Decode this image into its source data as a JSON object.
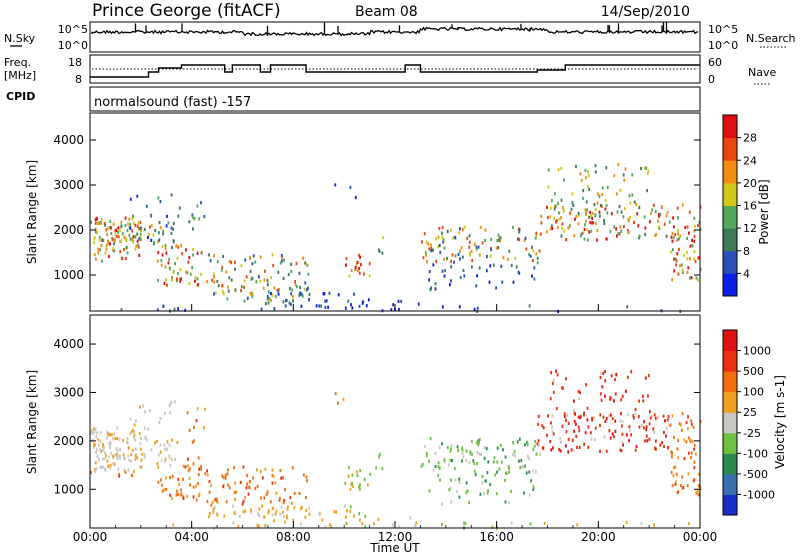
{
  "header": {
    "station": "Prince George (fitACF)",
    "beam": "Beam 08",
    "date": "14/Sep/2010"
  },
  "nsky_panel": {
    "left_label": "N.Sky",
    "right_label": "N.Search",
    "ticks_left": [
      "10^5",
      "10^0"
    ],
    "ticks_right": [
      "10^5",
      "10^0"
    ]
  },
  "freq_panel": {
    "left_label_line1": "Freq.",
    "left_label_line2": "[MHz]",
    "right_label": "Nave",
    "ticks_left": [
      "18",
      "8"
    ],
    "ticks_right": [
      "60",
      "0"
    ]
  },
  "cpid": {
    "label": "CPID",
    "value": "normalsound (fast) -157"
  },
  "chart_data": [
    {
      "type": "heatmap",
      "name": "power",
      "ylabel": "Slant Range [km]",
      "ylim": [
        200,
        4600
      ],
      "yticks": [
        "1000",
        "2000",
        "3000",
        "4000"
      ],
      "colorbar_label": "Power [dB]",
      "colorbar_ticks": [
        "4",
        "8",
        "12",
        "16",
        "20",
        "24",
        "28"
      ],
      "colorbar_range": [
        0,
        32
      ],
      "colors": [
        "#0a1ee6",
        "#2a50b8",
        "#3c7a5a",
        "#52a85a",
        "#d2c818",
        "#f08c10",
        "#e84810",
        "#e01010"
      ]
    },
    {
      "type": "heatmap",
      "name": "velocity",
      "ylabel": "Slant Range [km]",
      "ylim": [
        200,
        4600
      ],
      "yticks": [
        "1000",
        "2000",
        "3000",
        "4000"
      ],
      "colorbar_label": "Velocity [m s-1]",
      "colorbar_ticks": [
        "1000",
        "500",
        "100",
        "25",
        "-25",
        "-100",
        "-500",
        "-1000"
      ],
      "colors": [
        "#1a2ec8",
        "#3a70b0",
        "#2a8a50",
        "#70c040",
        "#c8c8c0",
        "#f0a020",
        "#f07010",
        "#e83010",
        "#e01010"
      ]
    }
  ],
  "time_axis": {
    "label": "Time UT",
    "ticks": [
      "00:00",
      "04:00",
      "08:00",
      "12:00",
      "16:00",
      "20:00",
      "00:00"
    ]
  }
}
